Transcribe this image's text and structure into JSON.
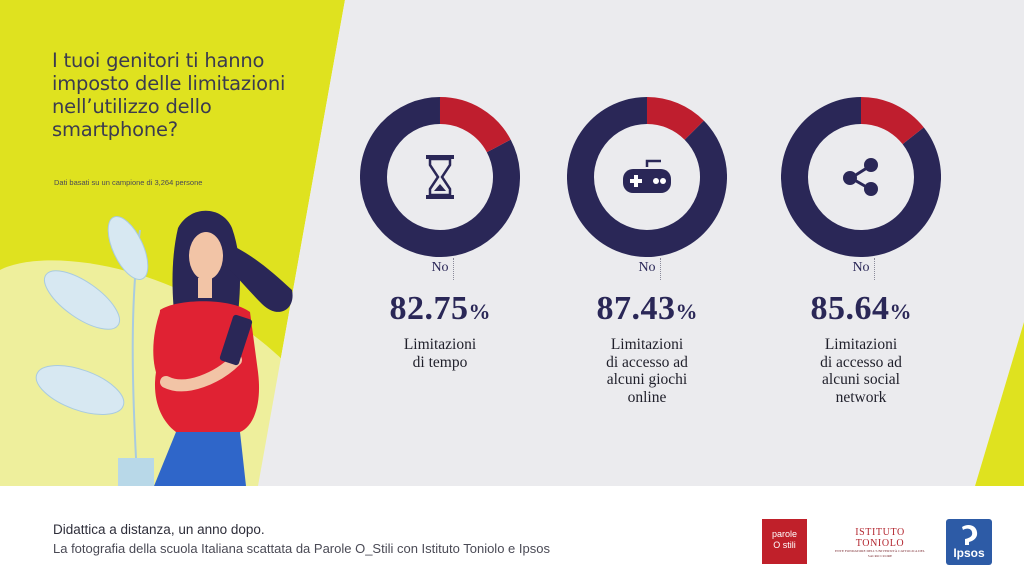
{
  "question": "I tuoi genitori ti hanno\nimposto delle limitazioni\nnell’utilizzo dello\nsmartphone?",
  "sample_note": "Dati basati su un campione di 3,264 persone",
  "colors": {
    "yellow": "#dfe21f",
    "light_yellow": "#eeef9c",
    "gray_panel": "#ebebee",
    "navy": "#2a2757",
    "red": "#bf1e2e"
  },
  "chart_data": {
    "type": "pie",
    "items": [
      {
        "category": "Limitazioni di tempo",
        "desc_lines": [
          "Limitazioni",
          "di tempo"
        ],
        "no_label": "No",
        "no_value": 82.75,
        "no_display": "82.75",
        "icon": "hourglass-icon"
      },
      {
        "category": "Limitazioni di accesso ad alcuni giochi online",
        "desc_lines": [
          "Limitazioni",
          "di accesso ad",
          "alcuni giochi",
          "online"
        ],
        "no_label": "No",
        "no_value": 87.43,
        "no_display": "87.43",
        "icon": "gamepad-icon"
      },
      {
        "category": "Limitazioni di accesso ad alcuni social network",
        "desc_lines": [
          "Limitazioni",
          "di accesso ad",
          "alcuni social",
          "network"
        ],
        "no_label": "No",
        "no_value": 85.64,
        "no_display": "85.64",
        "icon": "share-icon"
      }
    ],
    "percent_sign": "%"
  },
  "footer": {
    "line1": "Didattica a distanza, un anno dopo.",
    "line2": "La fotografia della scuola Italiana scattata da Parole O_Stili con Istituto Toniolo e Ipsos"
  },
  "logos": {
    "parole_ostili_line1": "parole",
    "parole_ostili_line2": "O stili",
    "toniolo_name": "ISTITUTO TONIOLO",
    "toniolo_sub": "ENTE FONDATORE DELL’UNIVERSITÀ CATTOLICA DEL SACRO CUORE",
    "ipsos": "Ipsos"
  }
}
